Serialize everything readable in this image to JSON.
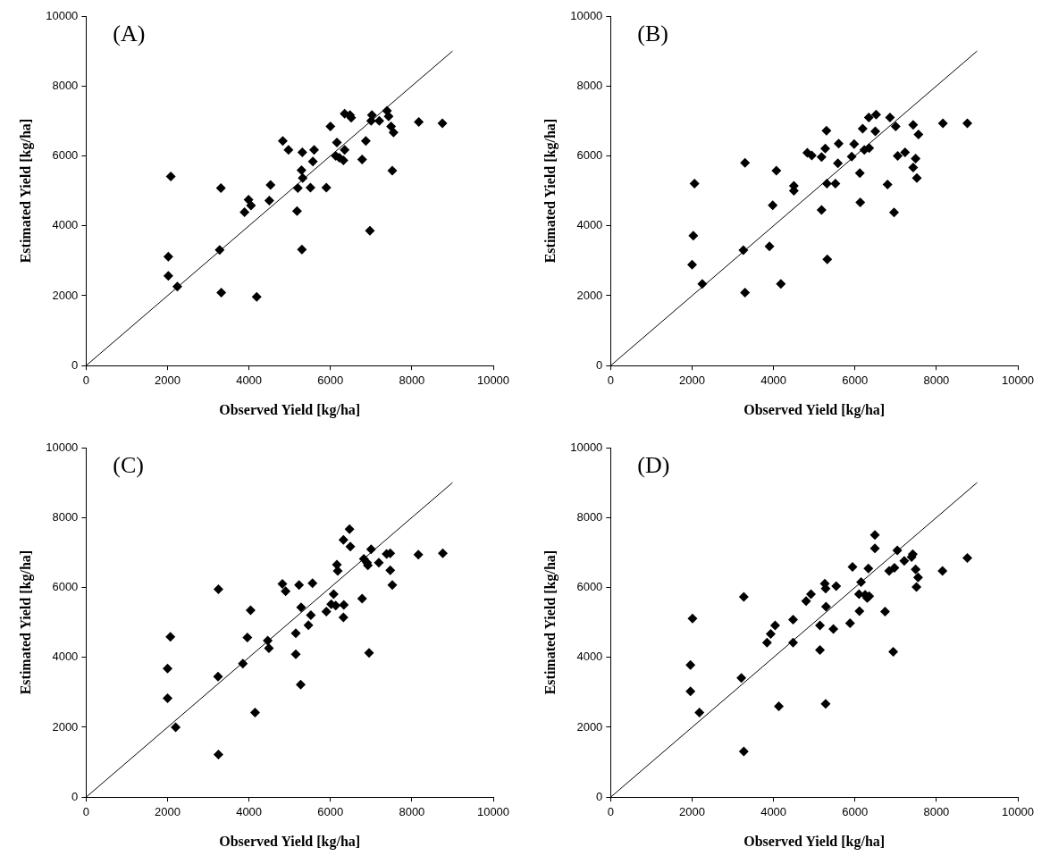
{
  "chart_data": [
    {
      "type": "scatter",
      "title": "(A)",
      "xlabel": "Observed Yield [kg/ha]",
      "ylabel": "Estimated Yield [kg/ha]",
      "xlim": [
        0,
        10000
      ],
      "ylim": [
        0,
        10000
      ],
      "xticks": [
        0,
        2000,
        4000,
        6000,
        8000,
        10000
      ],
      "yticks": [
        0,
        2000,
        4000,
        6000,
        8000,
        10000
      ],
      "grid": false,
      "legend": false,
      "marker": "diamond",
      "series": [
        {
          "color": "#000000",
          "x": [
            2080,
            2020,
            2020,
            2240,
            3310,
            3280,
            3320,
            4190,
            3890,
            3990,
            4050,
            4500,
            4530,
            4830,
            4970,
            5310,
            5600,
            5570,
            5290,
            5320,
            5200,
            5180,
            5300,
            5510,
            5900,
            6000,
            6160,
            6350,
            6130,
            6220,
            6320,
            6350,
            6510,
            6480,
            6780,
            6870,
            6970,
            7020,
            7000,
            7200,
            7390,
            7430,
            7490,
            7550,
            7520,
            8170,
            8750
          ],
          "values": [
            5410,
            3120,
            2570,
            2260,
            5080,
            3310,
            2090,
            1970,
            4390,
            4750,
            4580,
            4720,
            5170,
            6430,
            6170,
            6100,
            6170,
            5840,
            5590,
            5370,
            5080,
            4420,
            3320,
            5090,
            5090,
            6840,
            6380,
            6170,
            6000,
            5950,
            5870,
            7210,
            7090,
            7170,
            5900,
            6430,
            3860,
            7170,
            7000,
            7000,
            7290,
            7130,
            6840,
            6670,
            5580,
            6970,
            6930
          ]
        },
        {
          "type": "line",
          "color": "#000000",
          "marker": "none",
          "x": [
            0,
            9000
          ],
          "values": [
            0,
            9000
          ]
        }
      ]
    },
    {
      "type": "scatter",
      "title": "(B)",
      "xlabel": "Observed Yield [kg/ha]",
      "ylabel": "Estimated Yield [kg/ha]",
      "xlim": [
        0,
        10000
      ],
      "ylim": [
        0,
        10000
      ],
      "xticks": [
        0,
        2000,
        4000,
        6000,
        8000,
        10000
      ],
      "yticks": [
        0,
        2000,
        4000,
        6000,
        8000,
        10000
      ],
      "grid": false,
      "legend": false,
      "marker": "diamond",
      "series": [
        {
          "color": "#000000",
          "x": [
            2060,
            2030,
            2000,
            2250,
            3300,
            3260,
            3300,
            4070,
            3980,
            3900,
            4180,
            4500,
            4500,
            4830,
            4940,
            5180,
            5300,
            5270,
            5180,
            5310,
            5320,
            5600,
            5580,
            5520,
            5980,
            5920,
            6120,
            6130,
            6190,
            6230,
            6350,
            6340,
            6520,
            6500,
            6860,
            7000,
            6800,
            6960,
            7050,
            7230,
            7430,
            7560,
            7490,
            7430,
            7520,
            8160,
            8760
          ],
          "values": [
            5210,
            3720,
            2890,
            2340,
            5800,
            3300,
            2090,
            5580,
            4590,
            3410,
            2340,
            5140,
            5000,
            6090,
            6010,
            5970,
            6720,
            6210,
            4450,
            5210,
            3040,
            6350,
            5790,
            5210,
            6340,
            5980,
            5510,
            4670,
            6780,
            6170,
            6220,
            7100,
            7180,
            6700,
            7100,
            6840,
            5180,
            4380,
            6000,
            6100,
            6890,
            6610,
            5920,
            5670,
            5370,
            6930,
            6930
          ]
        },
        {
          "type": "line",
          "color": "#000000",
          "marker": "none",
          "x": [
            0,
            9000
          ],
          "values": [
            0,
            9000
          ]
        }
      ]
    },
    {
      "type": "scatter",
      "title": "(C)",
      "xlabel": "Observed Yield [kg/ha]",
      "ylabel": "Estimated Yield [kg/ha]",
      "xlim": [
        0,
        10000
      ],
      "ylim": [
        0,
        10000
      ],
      "xticks": [
        0,
        2000,
        4000,
        6000,
        8000,
        10000
      ],
      "yticks": [
        0,
        2000,
        4000,
        6000,
        8000,
        10000
      ],
      "grid": false,
      "legend": false,
      "marker": "diamond",
      "series": [
        {
          "color": "#000000",
          "x": [
            2070,
            2000,
            2000,
            2200,
            3250,
            3240,
            3250,
            4040,
            3960,
            3850,
            4150,
            4460,
            4490,
            4820,
            4900,
            5230,
            5150,
            5150,
            5270,
            5280,
            5560,
            5520,
            5460,
            5900,
            6020,
            6080,
            6130,
            6160,
            6180,
            6320,
            6330,
            6320,
            6470,
            6490,
            6780,
            6820,
            6900,
            6950,
            7000,
            6920,
            7190,
            7380,
            7470,
            7470,
            7520,
            8160,
            8760
          ],
          "values": [
            4590,
            3680,
            2830,
            2000,
            5950,
            3450,
            1220,
            5350,
            4570,
            3820,
            2420,
            4480,
            4260,
            6100,
            5890,
            6070,
            4690,
            4090,
            3220,
            5430,
            6120,
            5210,
            4920,
            5310,
            5520,
            5810,
            5480,
            6650,
            6470,
            7360,
            5500,
            5140,
            7670,
            7170,
            5680,
            6820,
            6710,
            4130,
            7090,
            6630,
            6710,
            6960,
            6980,
            6490,
            6070,
            6940,
            6980
          ]
        },
        {
          "type": "line",
          "color": "#000000",
          "marker": "none",
          "x": [
            0,
            9000
          ],
          "values": [
            0,
            9000
          ]
        }
      ]
    },
    {
      "type": "scatter",
      "title": "(D)",
      "xlabel": "Observed Yield [kg/ha]",
      "ylabel": "Estimated Yield [kg/ha]",
      "xlim": [
        0,
        10000
      ],
      "ylim": [
        0,
        10000
      ],
      "xticks": [
        0,
        2000,
        4000,
        6000,
        8000,
        10000
      ],
      "yticks": [
        0,
        2000,
        4000,
        6000,
        8000,
        10000
      ],
      "grid": false,
      "legend": false,
      "marker": "diamond",
      "series": [
        {
          "color": "#000000",
          "x": [
            2010,
            1960,
            1960,
            2180,
            3270,
            3210,
            3270,
            4130,
            3840,
            3930,
            4040,
            4480,
            4480,
            4800,
            4920,
            5260,
            5280,
            5140,
            5140,
            5280,
            5290,
            5470,
            5540,
            5880,
            5940,
            6100,
            6110,
            6150,
            6250,
            6300,
            6350,
            6330,
            6490,
            6490,
            6740,
            6840,
            6940,
            6970,
            7040,
            7210,
            7390,
            7420,
            7490,
            7550,
            7510,
            8150,
            8760
          ],
          "values": [
            5110,
            3780,
            3030,
            2420,
            5730,
            3410,
            1310,
            2600,
            4420,
            4670,
            4910,
            5080,
            4420,
            5610,
            5810,
            6110,
            5970,
            4910,
            4210,
            2670,
            5450,
            4810,
            6040,
            4980,
            6590,
            5810,
            5320,
            6150,
            5790,
            5700,
            5750,
            6540,
            7500,
            7120,
            5310,
            6470,
            4160,
            6560,
            7060,
            6760,
            6870,
            6950,
            6520,
            6290,
            6010,
            6470,
            6840
          ]
        },
        {
          "type": "line",
          "color": "#000000",
          "marker": "none",
          "x": [
            0,
            9000
          ],
          "values": [
            0,
            9000
          ]
        }
      ]
    }
  ]
}
